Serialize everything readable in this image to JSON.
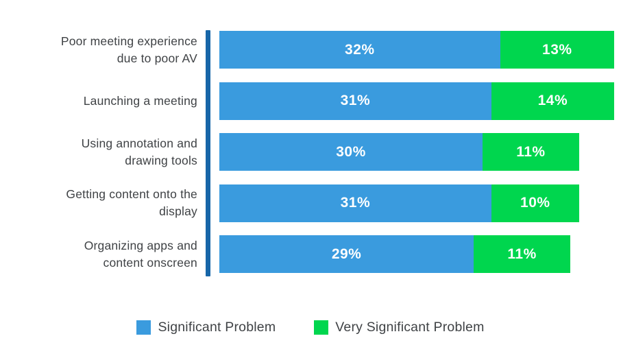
{
  "chart_data": {
    "type": "bar",
    "orientation": "horizontal-stacked",
    "title": "",
    "xlabel": "",
    "ylabel": "",
    "value_suffix": "%",
    "grid": false,
    "legend_position": "bottom",
    "categories": [
      "Poor meeting experience\ndue to poor AV",
      "Launching a meeting",
      "Using annotation and\ndrawing tools",
      "Getting content onto the\ndisplay",
      "Organizing apps and\ncontent onscreen"
    ],
    "series": [
      {
        "name": "Significant Problem",
        "color": "#3A9BDE",
        "values": [
          32,
          31,
          30,
          31,
          29
        ]
      },
      {
        "name": "Very Significant Problem",
        "color": "#00D64E",
        "values": [
          13,
          14,
          11,
          10,
          11
        ]
      }
    ],
    "colors": {
      "axis_line": "#1766A8",
      "category_text": "#3F4245",
      "value_text": "#FFFFFF",
      "legend_text": "#3F4245",
      "background": "#FFFFFF"
    }
  }
}
